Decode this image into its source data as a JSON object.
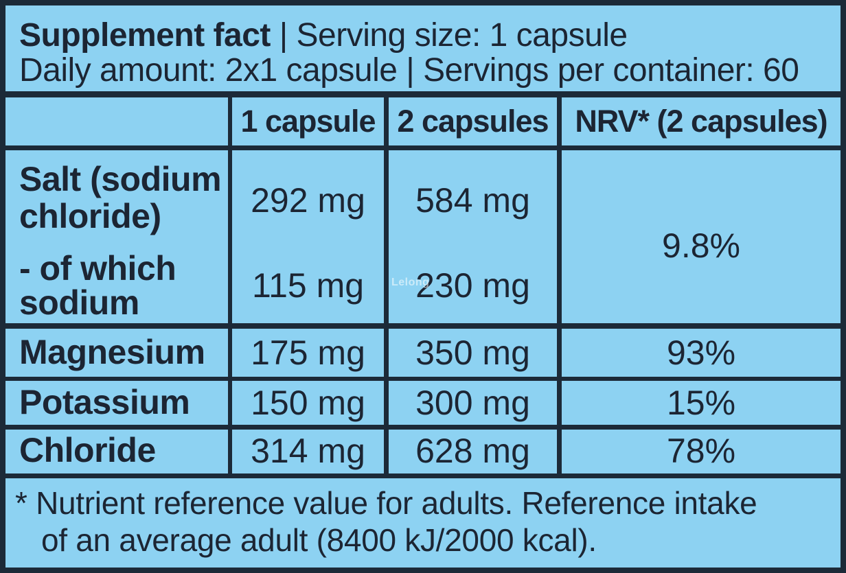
{
  "header": {
    "title_bold": "Supplement fact",
    "title_rest": " | Serving size: 1 capsule",
    "line2": "Daily amount: 2x1 capsule | Servings per container: 60"
  },
  "columns": [
    "1 capsule",
    "2 capsules",
    "NRV* (2 capsules)"
  ],
  "rows": [
    {
      "label_line1": "Salt (sodium",
      "label_line2": "chloride)",
      "one": "292 mg",
      "two": "584 mg",
      "nrv": "9.8%"
    },
    {
      "label_line1": "- of which",
      "label_line2": "sodium",
      "one": "115 mg",
      "two": "230 mg"
    },
    {
      "label": "Magnesium",
      "one": "175 mg",
      "two": "350 mg",
      "nrv": "93%"
    },
    {
      "label": "Potassium",
      "one": "150 mg",
      "two": "300 mg",
      "nrv": "15%"
    },
    {
      "label": "Chloride",
      "one": "314 mg",
      "two": "628 mg",
      "nrv": "78%"
    }
  ],
  "footnote": {
    "line1": "* Nutrient reference value for adults. Reference intake",
    "line2": "of an average adult (8400 kJ/2000 kcal)."
  },
  "watermark": "Lelong",
  "colors": {
    "cell_background": "#8dd2f2",
    "border": "#1c2a38",
    "text": "#1c2533"
  }
}
